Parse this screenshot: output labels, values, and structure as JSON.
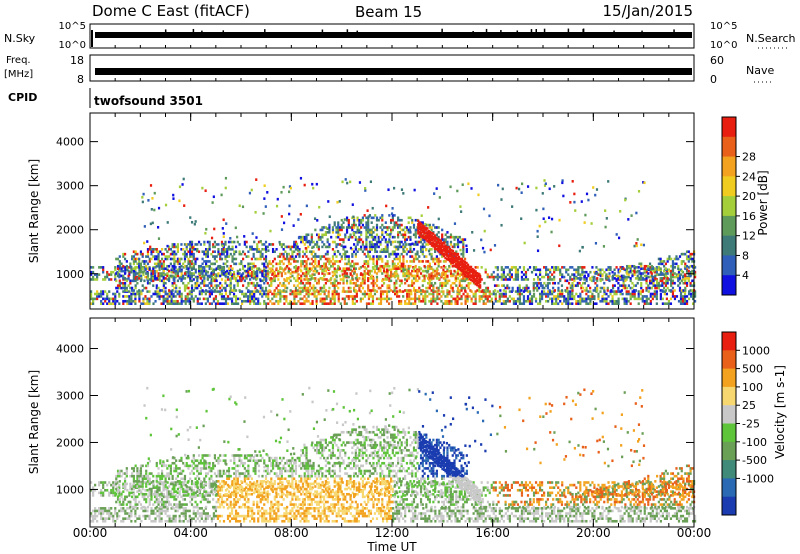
{
  "header": {
    "station": "Dome C East (fitACF)",
    "beam": "Beam 15",
    "date": "15/Jan/2015"
  },
  "panels": {
    "nsky": {
      "label": "N.Sky",
      "ticks": [
        "10^5",
        "10^0"
      ]
    },
    "nsearch": {
      "label": "N.Search",
      "ticks": [
        "10^5",
        "10^0"
      ]
    },
    "freq": {
      "label1": "Freq.",
      "label2": "[MHz]",
      "ticks": [
        "18",
        "8"
      ]
    },
    "nave": {
      "label": "Nave",
      "ticks": [
        "60",
        "0"
      ]
    },
    "cpid": {
      "label": "CPID",
      "value": "twofsound 3501"
    }
  },
  "chart_data": [
    {
      "type": "heatmap",
      "name": "power",
      "ylabel": "Slant Range [km]",
      "yticks": [
        "1000",
        "2000",
        "3000",
        "4000"
      ],
      "ylim": [
        200,
        4650
      ],
      "colorbar": {
        "label": "Power [dB]",
        "ticks": [
          "4",
          "8",
          "12",
          "16",
          "20",
          "24",
          "28"
        ],
        "colors": [
          "#1010e0",
          "#2f5fb8",
          "#3e7a78",
          "#5e9a5a",
          "#a4cf3a",
          "#f0cc20",
          "#f2a21e",
          "#e8601a",
          "#e81e10"
        ]
      }
    },
    {
      "type": "heatmap",
      "name": "velocity",
      "ylabel": "Slant Range [km]",
      "yticks": [
        "1000",
        "2000",
        "3000",
        "4000"
      ],
      "ylim": [
        200,
        4650
      ],
      "colorbar": {
        "label": "Velocity [m s-1]",
        "ticks": [
          "1000",
          "500",
          "100",
          "25",
          "-25",
          "-100",
          "-500",
          "-1000"
        ],
        "colors": [
          "#1a3cb0",
          "#2a6ab4",
          "#3f8a78",
          "#6aa056",
          "#5ec43a",
          "#c8c8c8",
          "#f7d870",
          "#f2a21e",
          "#e8601a",
          "#e81e10"
        ]
      }
    }
  ],
  "time_axis": {
    "labels": [
      "00:00",
      "04:00",
      "08:00",
      "12:00",
      "16:00",
      "20:00",
      "00:00"
    ],
    "title": "Time UT"
  },
  "colors": {
    "trace": "#000000",
    "grid": "#000000"
  }
}
